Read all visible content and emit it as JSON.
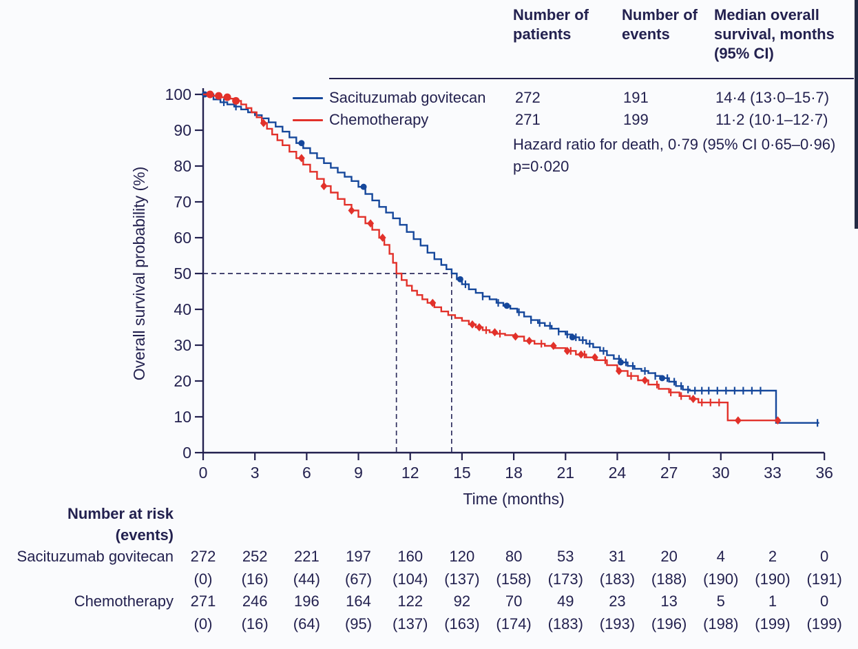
{
  "colors": {
    "text": "#23214f",
    "sg_blue": "#15479b",
    "chemo_red": "#e2312a",
    "background": "#fafbfd",
    "dash": "#2e2e5e",
    "axis": "#23214f"
  },
  "header": {
    "patients": "Number of patients",
    "events": "Number of events",
    "median": "Median overall survival, months (95% CI)"
  },
  "legend": {
    "rows": [
      {
        "name": "Sacituzumab govitecan",
        "color": "#15479b",
        "patients": "272",
        "events": "191",
        "median": "14·4 (13·0–15·7)"
      },
      {
        "name": "Chemotherapy",
        "color": "#e2312a",
        "patients": "271",
        "events": "199",
        "median": "11·2 (10·1–12·7)"
      }
    ]
  },
  "stats": {
    "hazard_ratio": "Hazard ratio for death, 0·79 (95% CI 0·65–0·96)",
    "p_value": "p=0·020"
  },
  "chart_data": {
    "type": "line",
    "subtype": "kaplan-meier-step",
    "title": "",
    "xlabel": "Time (months)",
    "ylabel": "Overall survival probability (%)",
    "xlim": [
      0,
      36
    ],
    "ylim": [
      0,
      100
    ],
    "xticks": [
      0,
      3,
      6,
      9,
      12,
      15,
      18,
      21,
      24,
      27,
      30,
      33,
      36
    ],
    "yticks": [
      0,
      10,
      20,
      30,
      40,
      50,
      60,
      70,
      80,
      90,
      100
    ],
    "grid": false,
    "legend_position": "top-left-inside",
    "medians": {
      "sacituzumab_govitecan_months": 14.4,
      "chemotherapy_months": 11.2,
      "reference_level_percent": 50
    },
    "series": [
      {
        "name": "Sacituzumab govitecan",
        "color": "#15479b",
        "points": [
          [
            0,
            100
          ],
          [
            0.6,
            98.6
          ],
          [
            1.0,
            97.8
          ],
          [
            1.4,
            97.2
          ],
          [
            1.8,
            96.6
          ],
          [
            2.2,
            95.8
          ],
          [
            2.6,
            95.0
          ],
          [
            3.0,
            94.2
          ],
          [
            3.4,
            93.3
          ],
          [
            3.8,
            92.2
          ],
          [
            4.2,
            91.0
          ],
          [
            4.6,
            89.6
          ],
          [
            5.0,
            88.0
          ],
          [
            5.4,
            86.4
          ],
          [
            5.8,
            85.0
          ],
          [
            6.2,
            83.6
          ],
          [
            6.6,
            82.2
          ],
          [
            7.0,
            80.8
          ],
          [
            7.4,
            79.5
          ],
          [
            7.8,
            78.2
          ],
          [
            8.2,
            77.0
          ],
          [
            8.6,
            75.8
          ],
          [
            9.0,
            74.2
          ],
          [
            9.4,
            72.2
          ],
          [
            9.8,
            70.4
          ],
          [
            10.2,
            68.6
          ],
          [
            10.6,
            67.0
          ],
          [
            11.0,
            65.4
          ],
          [
            11.4,
            63.6
          ],
          [
            11.8,
            61.6
          ],
          [
            12.2,
            59.6
          ],
          [
            12.6,
            57.8
          ],
          [
            13.0,
            55.8
          ],
          [
            13.4,
            54.0
          ],
          [
            13.8,
            52.4
          ],
          [
            14.1,
            51.2
          ],
          [
            14.4,
            50.0
          ],
          [
            14.7,
            48.4
          ],
          [
            15.0,
            47.0
          ],
          [
            15.4,
            45.6
          ],
          [
            15.8,
            44.6
          ],
          [
            16.2,
            43.6
          ],
          [
            16.6,
            42.8
          ],
          [
            17.0,
            41.8
          ],
          [
            17.4,
            41.0
          ],
          [
            17.8,
            40.2
          ],
          [
            18.2,
            39.2
          ],
          [
            18.6,
            38.0
          ],
          [
            19.0,
            37.0
          ],
          [
            19.4,
            36.2
          ],
          [
            19.8,
            35.4
          ],
          [
            20.2,
            34.6
          ],
          [
            20.6,
            33.8
          ],
          [
            21.0,
            33.0
          ],
          [
            21.4,
            32.2
          ],
          [
            21.8,
            31.4
          ],
          [
            22.2,
            30.4
          ],
          [
            22.6,
            29.4
          ],
          [
            23.0,
            28.4
          ],
          [
            23.4,
            27.2
          ],
          [
            23.8,
            26.2
          ],
          [
            24.2,
            25.2
          ],
          [
            24.6,
            24.2
          ],
          [
            25.0,
            23.4
          ],
          [
            25.4,
            22.8
          ],
          [
            25.8,
            22.2
          ],
          [
            26.2,
            21.4
          ],
          [
            26.6,
            20.8
          ],
          [
            27.0,
            19.8
          ],
          [
            27.4,
            18.6
          ],
          [
            27.8,
            17.6
          ],
          [
            28.2,
            17.3
          ],
          [
            33.2,
            17.3
          ],
          [
            33.2,
            8.3
          ],
          [
            35.7,
            8.3
          ]
        ],
        "censor_times": [
          1.2,
          1.9,
          15.2,
          16.2,
          17.1,
          18.3,
          19.0,
          19.5,
          20.1,
          20.6,
          21.1,
          21.6,
          22.0,
          22.4,
          23.2,
          24.1,
          24.5,
          24.9,
          25.6,
          26.2,
          26.9,
          27.3,
          27.7,
          28.1,
          28.5,
          28.9,
          29.3,
          29.8,
          30.3,
          30.8,
          31.3,
          31.8,
          32.3,
          35.6
        ],
        "dot_marker_times": [
          0.1,
          5.7,
          9.3,
          14.9,
          17.6,
          21.4,
          24.2,
          26.6
        ]
      },
      {
        "name": "Chemotherapy",
        "color": "#e2312a",
        "points": [
          [
            0,
            100
          ],
          [
            0.5,
            99.6
          ],
          [
            1.0,
            99.2
          ],
          [
            1.5,
            98.8
          ],
          [
            1.9,
            98.2
          ],
          [
            2.2,
            97.2
          ],
          [
            2.5,
            96.2
          ],
          [
            2.8,
            95.0
          ],
          [
            3.1,
            93.6
          ],
          [
            3.4,
            92.0
          ],
          [
            3.7,
            90.4
          ],
          [
            4.0,
            88.8
          ],
          [
            4.3,
            87.2
          ],
          [
            4.6,
            85.8
          ],
          [
            5.0,
            84.0
          ],
          [
            5.4,
            82.2
          ],
          [
            5.8,
            80.4
          ],
          [
            6.2,
            78.4
          ],
          [
            6.6,
            76.4
          ],
          [
            7.0,
            74.4
          ],
          [
            7.4,
            72.6
          ],
          [
            7.8,
            70.8
          ],
          [
            8.2,
            69.2
          ],
          [
            8.6,
            67.6
          ],
          [
            9.0,
            65.8
          ],
          [
            9.4,
            64.0
          ],
          [
            9.8,
            62.2
          ],
          [
            10.2,
            60.0
          ],
          [
            10.5,
            58.0
          ],
          [
            10.8,
            55.5
          ],
          [
            11.0,
            53.0
          ],
          [
            11.2,
            50.0
          ],
          [
            11.5,
            48.2
          ],
          [
            11.8,
            46.6
          ],
          [
            12.1,
            45.2
          ],
          [
            12.4,
            44.0
          ],
          [
            12.7,
            42.8
          ],
          [
            13.0,
            41.8
          ],
          [
            13.4,
            40.6
          ],
          [
            13.8,
            39.4
          ],
          [
            14.2,
            38.4
          ],
          [
            14.6,
            37.6
          ],
          [
            15.0,
            36.8
          ],
          [
            15.4,
            35.8
          ],
          [
            15.8,
            35.0
          ],
          [
            16.2,
            34.2
          ],
          [
            16.6,
            33.6
          ],
          [
            17.0,
            33.2
          ],
          [
            17.5,
            32.8
          ],
          [
            18.0,
            32.4
          ],
          [
            18.6,
            31.2
          ],
          [
            19.2,
            30.4
          ],
          [
            19.8,
            29.8
          ],
          [
            20.4,
            29.2
          ],
          [
            21.0,
            28.4
          ],
          [
            21.6,
            27.4
          ],
          [
            22.2,
            26.6
          ],
          [
            22.8,
            25.8
          ],
          [
            23.4,
            24.4
          ],
          [
            24.0,
            22.8
          ],
          [
            24.6,
            21.4
          ],
          [
            25.2,
            20.2
          ],
          [
            25.8,
            19.0
          ],
          [
            26.4,
            17.8
          ],
          [
            27.0,
            16.8
          ],
          [
            27.6,
            15.8
          ],
          [
            28.2,
            15.0
          ],
          [
            28.7,
            14.0
          ],
          [
            30.4,
            14.0
          ],
          [
            30.4,
            9.0
          ],
          [
            33.3,
            9.0
          ]
        ],
        "censor_times": [
          16.4,
          17.2,
          19.6,
          21.3,
          22.1,
          23.3,
          24.8,
          26.3,
          27.1,
          27.7,
          28.9,
          29.4,
          29.9
        ],
        "circle_marker_times": [
          0.4,
          0.9,
          1.4,
          1.9
        ],
        "diamond_marker_times": [
          3.5,
          5.7,
          7.0,
          8.6,
          9.7,
          10.4,
          13.3,
          15.6,
          16.0,
          16.9,
          18.1,
          18.9,
          20.3,
          21.1,
          21.9,
          22.7,
          24.1,
          25.6,
          28.4,
          31.0,
          33.3
        ]
      }
    ]
  },
  "at_risk": {
    "title_line1": "Number at risk",
    "title_line2": "(events)",
    "times": [
      0,
      3,
      6,
      9,
      12,
      15,
      18,
      21,
      24,
      27,
      30,
      33,
      36
    ],
    "rows": [
      {
        "label": "Sacituzumab govitecan",
        "counts": [
          "272",
          "252",
          "221",
          "197",
          "160",
          "120",
          "80",
          "53",
          "31",
          "20",
          "4",
          "2",
          "0"
        ],
        "events": [
          "(0)",
          "(16)",
          "(44)",
          "(67)",
          "(104)",
          "(137)",
          "(158)",
          "(173)",
          "(183)",
          "(188)",
          "(190)",
          "(190)",
          "(191)"
        ]
      },
      {
        "label": "Chemotherapy",
        "counts": [
          "271",
          "246",
          "196",
          "164",
          "122",
          "92",
          "70",
          "49",
          "23",
          "13",
          "5",
          "1",
          "0"
        ],
        "events": [
          "(0)",
          "(16)",
          "(64)",
          "(95)",
          "(137)",
          "(163)",
          "(174)",
          "(183)",
          "(193)",
          "(196)",
          "(198)",
          "(199)",
          "(199)"
        ]
      }
    ]
  }
}
